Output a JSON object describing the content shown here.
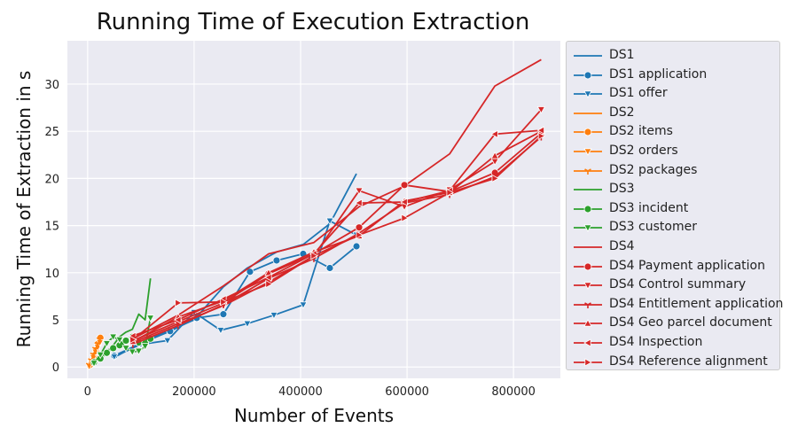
{
  "chart_data": {
    "type": "line",
    "title": "Running Time of Execution Extraction",
    "xlabel": "Number of Events",
    "ylabel": "Running Time of Extraction in s",
    "xlim": [
      -38000,
      888000
    ],
    "ylim": [
      -1.2,
      34.6
    ],
    "xticks": [
      0,
      200000,
      400000,
      600000,
      800000
    ],
    "xtick_labels": [
      "0",
      "200000",
      "400000",
      "600000",
      "800000"
    ],
    "yticks": [
      0,
      5,
      10,
      15,
      20,
      25,
      30
    ],
    "ytick_labels": [
      "0",
      "5",
      "10",
      "15",
      "20",
      "25",
      "30"
    ],
    "grid": true,
    "legend_position": "outside-right",
    "series": [
      {
        "name": "DS1",
        "color": "#1f77b4",
        "marker": "none",
        "x": [
          50000,
          100000,
          150000,
          200000,
          255000,
          300000,
          355000,
          405000,
          455000,
          505000
        ],
        "y": [
          1.0,
          2.6,
          3.8,
          5.0,
          8.5,
          10.5,
          12.2,
          13.0,
          15.2,
          20.5
        ]
      },
      {
        "name": "DS1 application",
        "color": "#1f77b4",
        "marker": "circle",
        "x": [
          50000,
          100000,
          155000,
          205000,
          255000,
          305000,
          355000,
          405000,
          455000,
          505000
        ],
        "y": [
          1.2,
          2.5,
          3.8,
          5.2,
          5.6,
          10.1,
          11.3,
          12.0,
          10.5,
          12.8
        ]
      },
      {
        "name": "DS1 offer",
        "color": "#1f77b4",
        "marker": "triangle-down",
        "x": [
          50000,
          100000,
          150000,
          200000,
          250000,
          300000,
          350000,
          405000,
          455000,
          505000
        ],
        "y": [
          1.1,
          2.4,
          2.8,
          5.8,
          3.9,
          4.6,
          5.5,
          6.6,
          15.5,
          14.0
        ]
      },
      {
        "name": "DS2",
        "color": "#ff7f0e",
        "marker": "none",
        "x": [
          4000,
          8000,
          12000,
          16000,
          20000,
          24000
        ],
        "y": [
          0.3,
          0.8,
          1.4,
          2.0,
          2.6,
          3.1
        ]
      },
      {
        "name": "DS2 items",
        "color": "#ff7f0e",
        "marker": "circle",
        "x": [
          4000,
          8000,
          12000,
          16000,
          20000,
          24000
        ],
        "y": [
          0.2,
          0.6,
          1.2,
          1.8,
          2.5,
          3.1
        ]
      },
      {
        "name": "DS2 orders",
        "color": "#ff7f0e",
        "marker": "triangle-down",
        "x": [
          3000,
          7000,
          11000,
          15000,
          19000,
          23000
        ],
        "y": [
          0.1,
          0.6,
          1.0,
          1.6,
          2.1,
          2.6
        ]
      },
      {
        "name": "DS2 packages",
        "color": "#ff7f0e",
        "marker": "tri-down",
        "x": [
          3000,
          7000,
          11000,
          15000,
          19000,
          23000
        ],
        "y": [
          0.2,
          0.7,
          1.3,
          1.9,
          2.4,
          2.9
        ]
      },
      {
        "name": "DS3",
        "color": "#2ca02c",
        "marker": "none",
        "x": [
          12000,
          24000,
          36000,
          48000,
          60000,
          72000,
          84000,
          96000,
          108000,
          118000
        ],
        "y": [
          0.5,
          1.0,
          1.6,
          2.3,
          3.2,
          3.7,
          4.0,
          5.6,
          5.0,
          9.4
        ]
      },
      {
        "name": "DS3 incident",
        "color": "#2ca02c",
        "marker": "circle",
        "x": [
          12000,
          24000,
          36000,
          48000,
          60000,
          72000,
          84000,
          96000,
          108000,
          118000
        ],
        "y": [
          0.5,
          0.9,
          1.5,
          2.0,
          2.3,
          2.8,
          3.2,
          2.6,
          2.5,
          3.0
        ]
      },
      {
        "name": "DS3 customer",
        "color": "#2ca02c",
        "marker": "triangle-down",
        "x": [
          12000,
          24000,
          36000,
          48000,
          60000,
          72000,
          84000,
          96000,
          108000,
          118000
        ],
        "y": [
          0.4,
          1.3,
          2.5,
          3.2,
          2.9,
          2.0,
          1.6,
          1.7,
          2.2,
          5.2
        ]
      },
      {
        "name": "DS4",
        "color": "#d62728",
        "marker": "none",
        "x": [
          85000,
          170000,
          255000,
          340000,
          425000,
          510000,
          595000,
          680000,
          765000,
          852000
        ],
        "y": [
          3.0,
          5.5,
          8.6,
          12.0,
          13.2,
          17.0,
          19.2,
          22.6,
          29.8,
          32.6
        ]
      },
      {
        "name": "DS4 Payment application",
        "color": "#d62728",
        "marker": "circle",
        "x": [
          85000,
          170000,
          255000,
          340000,
          425000,
          510000,
          595000,
          680000,
          765000,
          852000
        ],
        "y": [
          2.8,
          4.8,
          6.8,
          9.9,
          12.0,
          14.8,
          19.3,
          18.6,
          20.6,
          24.8
        ]
      },
      {
        "name": "DS4 Control summary",
        "color": "#d62728",
        "marker": "triangle-down",
        "x": [
          85000,
          170000,
          255000,
          340000,
          425000,
          510000,
          595000,
          680000,
          765000,
          852000
        ],
        "y": [
          2.6,
          4.6,
          6.5,
          9.0,
          11.8,
          18.7,
          17.0,
          18.8,
          21.8,
          27.3
        ]
      },
      {
        "name": "DS4 Entitlement application",
        "color": "#d62728",
        "marker": "tri-down",
        "x": [
          85000,
          170000,
          255000,
          340000,
          425000,
          510000,
          595000,
          680000,
          765000,
          852000
        ],
        "y": [
          2.4,
          4.4,
          6.6,
          9.4,
          11.5,
          14.2,
          17.4,
          18.3,
          20.2,
          24.4
        ]
      },
      {
        "name": "DS4 Geo parcel document",
        "color": "#d62728",
        "marker": "triangle-up",
        "x": [
          85000,
          170000,
          255000,
          340000,
          425000,
          510000,
          595000,
          680000,
          765000,
          852000
        ],
        "y": [
          2.7,
          5.3,
          7.0,
          10.0,
          12.2,
          13.9,
          17.6,
          18.5,
          22.4,
          25.0
        ]
      },
      {
        "name": "DS4 Inspection",
        "color": "#d62728",
        "marker": "triangle-left",
        "x": [
          85000,
          170000,
          255000,
          340000,
          425000,
          510000,
          595000,
          680000,
          765000,
          852000
        ],
        "y": [
          3.3,
          5.0,
          7.2,
          9.5,
          12.0,
          17.4,
          17.5,
          18.7,
          24.7,
          25.1
        ]
      },
      {
        "name": "DS4 Reference alignment",
        "color": "#d62728",
        "marker": "triangle-right",
        "x": [
          85000,
          170000,
          255000,
          340000,
          425000,
          510000,
          595000,
          680000,
          765000,
          852000
        ],
        "y": [
          2.9,
          6.8,
          6.9,
          8.8,
          11.8,
          14.0,
          15.8,
          18.5,
          20.0,
          24.5
        ]
      }
    ]
  }
}
